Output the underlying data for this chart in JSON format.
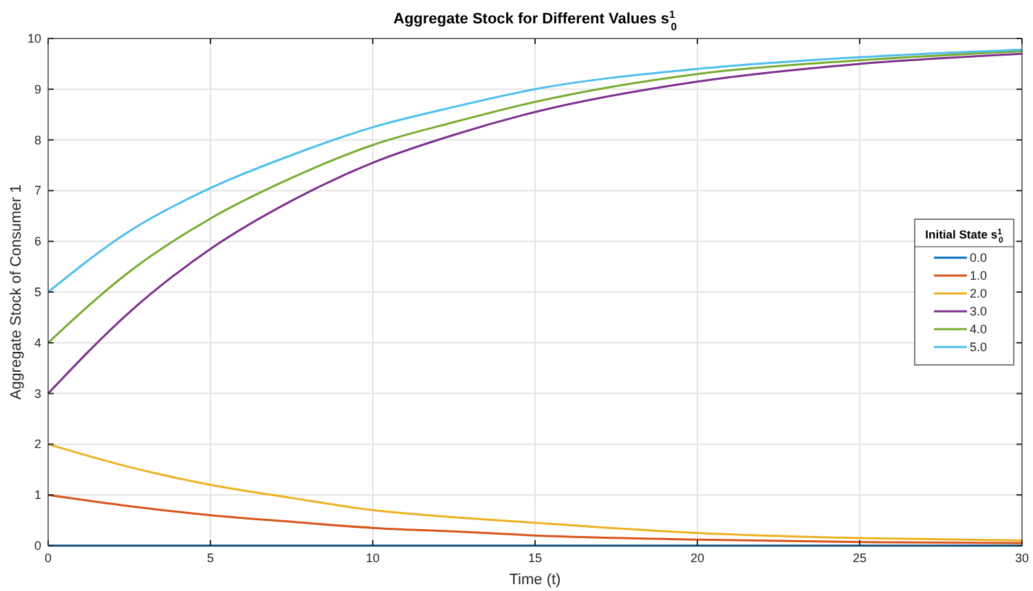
{
  "chart_data": {
    "type": "line",
    "title": "Aggregate Stock for Different Values s$^{1}$$_{0}$",
    "xlabel": "Time (t)",
    "ylabel": "Aggregate Stock of Consumer 1",
    "legend_title": "Initial State s$^{1}$$_{0}$",
    "x": [
      0,
      2.5,
      5,
      7.5,
      10,
      12.5,
      15,
      20,
      25,
      30
    ],
    "series": [
      {
        "name": "0.0",
        "color": "#0072bd",
        "values": [
          0,
          0,
          0,
          0,
          0,
          0,
          0,
          0,
          0,
          0
        ]
      },
      {
        "name": "1.0",
        "color": "#d95319",
        "values": [
          1,
          0.78,
          0.6,
          0.47,
          0.35,
          0.28,
          0.2,
          0.12,
          0.07,
          0.05
        ]
      },
      {
        "name": "2.0",
        "color": "#edb120",
        "values": [
          2,
          1.55,
          1.2,
          0.94,
          0.7,
          0.56,
          0.45,
          0.25,
          0.15,
          0.1
        ]
      },
      {
        "name": "3.0",
        "color": "#7e2f8e",
        "values": [
          3,
          4.6,
          5.85,
          6.8,
          7.55,
          8.1,
          8.55,
          9.15,
          9.5,
          9.7
        ]
      },
      {
        "name": "4.0",
        "color": "#77ac30",
        "values": [
          4,
          5.4,
          6.45,
          7.25,
          7.9,
          8.35,
          8.75,
          9.3,
          9.57,
          9.75
        ]
      },
      {
        "name": "5.0",
        "color": "#4dbeee",
        "values": [
          5,
          6.2,
          7.05,
          7.7,
          8.25,
          8.65,
          9.0,
          9.4,
          9.63,
          9.78
        ]
      }
    ],
    "xlim": [
      0,
      30
    ],
    "xticks": [
      0,
      5,
      10,
      15,
      20,
      25,
      30
    ],
    "ylim": [
      0,
      10
    ],
    "yticks": [
      0,
      1,
      2,
      3,
      4,
      5,
      6,
      7,
      8,
      9,
      10
    ],
    "grid": true,
    "legend": "right",
    "line_style": "solid",
    "marker": "none"
  }
}
